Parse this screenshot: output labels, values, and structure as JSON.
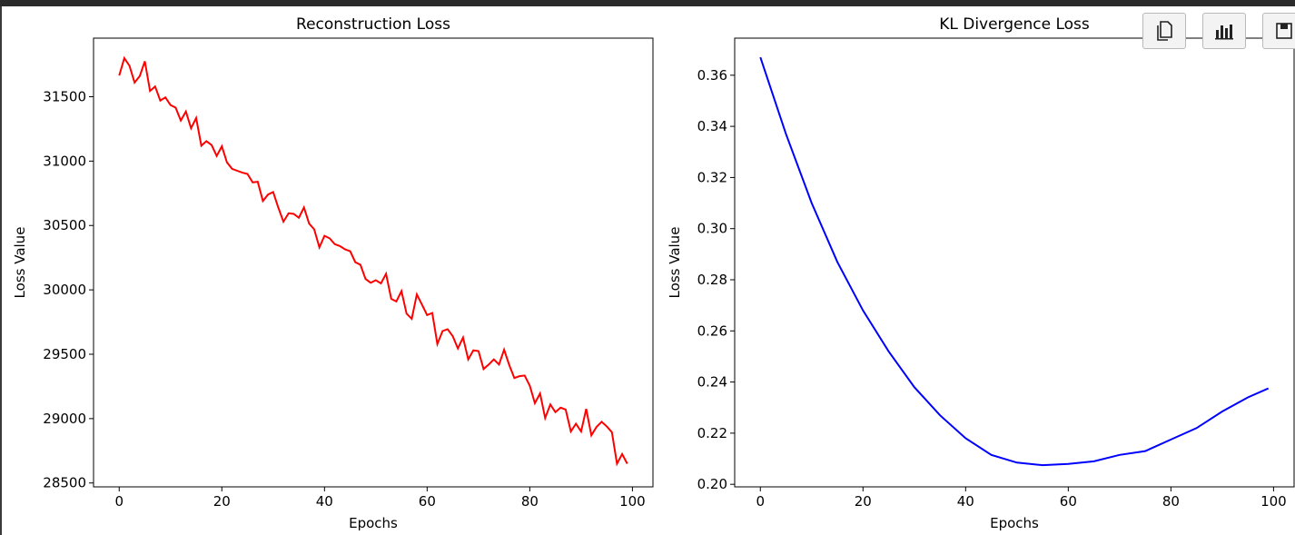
{
  "toolbar": {
    "buttons": [
      {
        "icon": "copy-icon"
      },
      {
        "icon": "bar-chart-icon"
      },
      {
        "icon": "save-icon"
      }
    ]
  },
  "colors": {
    "reconstruction_line": "#ff0000",
    "kl_line": "#0000ff"
  },
  "chart_data": [
    {
      "type": "line",
      "title": "Reconstruction Loss",
      "xlabel": "Epochs",
      "ylabel": "Loss Value",
      "xlim": [
        -5,
        104
      ],
      "ylim": [
        28470,
        31955
      ],
      "xticks": [
        0,
        20,
        40,
        60,
        80,
        100
      ],
      "yticks": [
        28500,
        29000,
        29500,
        30000,
        30500,
        31000,
        31500
      ],
      "grid": false,
      "series": [
        {
          "color": "#ff0000",
          "x": [
            0,
            1,
            2,
            3,
            4,
            5,
            6,
            7,
            8,
            9,
            10,
            11,
            12,
            13,
            14,
            15,
            16,
            17,
            18,
            19,
            20,
            21,
            22,
            23,
            24,
            25,
            26,
            27,
            28,
            29,
            30,
            31,
            32,
            33,
            34,
            35,
            36,
            37,
            38,
            39,
            40,
            41,
            42,
            43,
            44,
            45,
            46,
            47,
            48,
            49,
            50,
            51,
            52,
            53,
            54,
            55,
            56,
            57,
            58,
            59,
            60,
            61,
            62,
            63,
            64,
            65,
            66,
            67,
            68,
            69,
            70,
            71,
            72,
            73,
            74,
            75,
            76,
            77,
            78,
            79,
            80,
            81,
            82,
            83,
            84,
            85,
            86,
            87,
            88,
            89,
            90,
            91,
            92,
            93,
            94,
            95,
            96,
            97,
            98,
            99
          ],
          "values": [
            31665,
            31800,
            31740,
            31610,
            31660,
            31775,
            31545,
            31580,
            31470,
            31495,
            31435,
            31415,
            31315,
            31385,
            31255,
            31335,
            31120,
            31155,
            31125,
            31040,
            31115,
            30990,
            30940,
            30925,
            30910,
            30900,
            30835,
            30840,
            30690,
            30740,
            30760,
            30640,
            30530,
            30595,
            30590,
            30560,
            30640,
            30515,
            30470,
            30330,
            30420,
            30400,
            30355,
            30340,
            30315,
            30300,
            30215,
            30195,
            30085,
            30055,
            30075,
            30050,
            30125,
            29930,
            29910,
            29990,
            29815,
            29775,
            29965,
            29885,
            29805,
            29820,
            29580,
            29680,
            29695,
            29640,
            29545,
            29630,
            29460,
            29530,
            29525,
            29385,
            29420,
            29460,
            29420,
            29535,
            29415,
            29315,
            29330,
            29335,
            29255,
            29120,
            29195,
            29005,
            29110,
            29050,
            29085,
            29070,
            28900,
            28960,
            28900,
            29075,
            28870,
            28935,
            28975,
            28940,
            28895,
            28650,
            28725,
            28650
          ]
        }
      ]
    },
    {
      "type": "line",
      "title": "KL Divergence Loss",
      "xlabel": "Epochs",
      "ylabel": "Loss Value",
      "xlim": [
        -5,
        104
      ],
      "ylim": [
        0.199,
        0.3745
      ],
      "xticks": [
        0,
        20,
        40,
        60,
        80,
        100
      ],
      "yticks": [
        0.2,
        0.22,
        0.24,
        0.26,
        0.28,
        0.3,
        0.32,
        0.34,
        0.36
      ],
      "grid": false,
      "series": [
        {
          "color": "#0000ff",
          "x": [
            0,
            5,
            10,
            15,
            20,
            25,
            30,
            35,
            40,
            45,
            50,
            55,
            60,
            65,
            70,
            75,
            80,
            85,
            90,
            95,
            99
          ],
          "values": [
            0.367,
            0.337,
            0.31,
            0.287,
            0.268,
            0.252,
            0.238,
            0.227,
            0.218,
            0.2115,
            0.2085,
            0.2075,
            0.208,
            0.209,
            0.2115,
            0.213,
            0.2175,
            0.222,
            0.2285,
            0.234,
            0.2375
          ]
        }
      ]
    }
  ]
}
